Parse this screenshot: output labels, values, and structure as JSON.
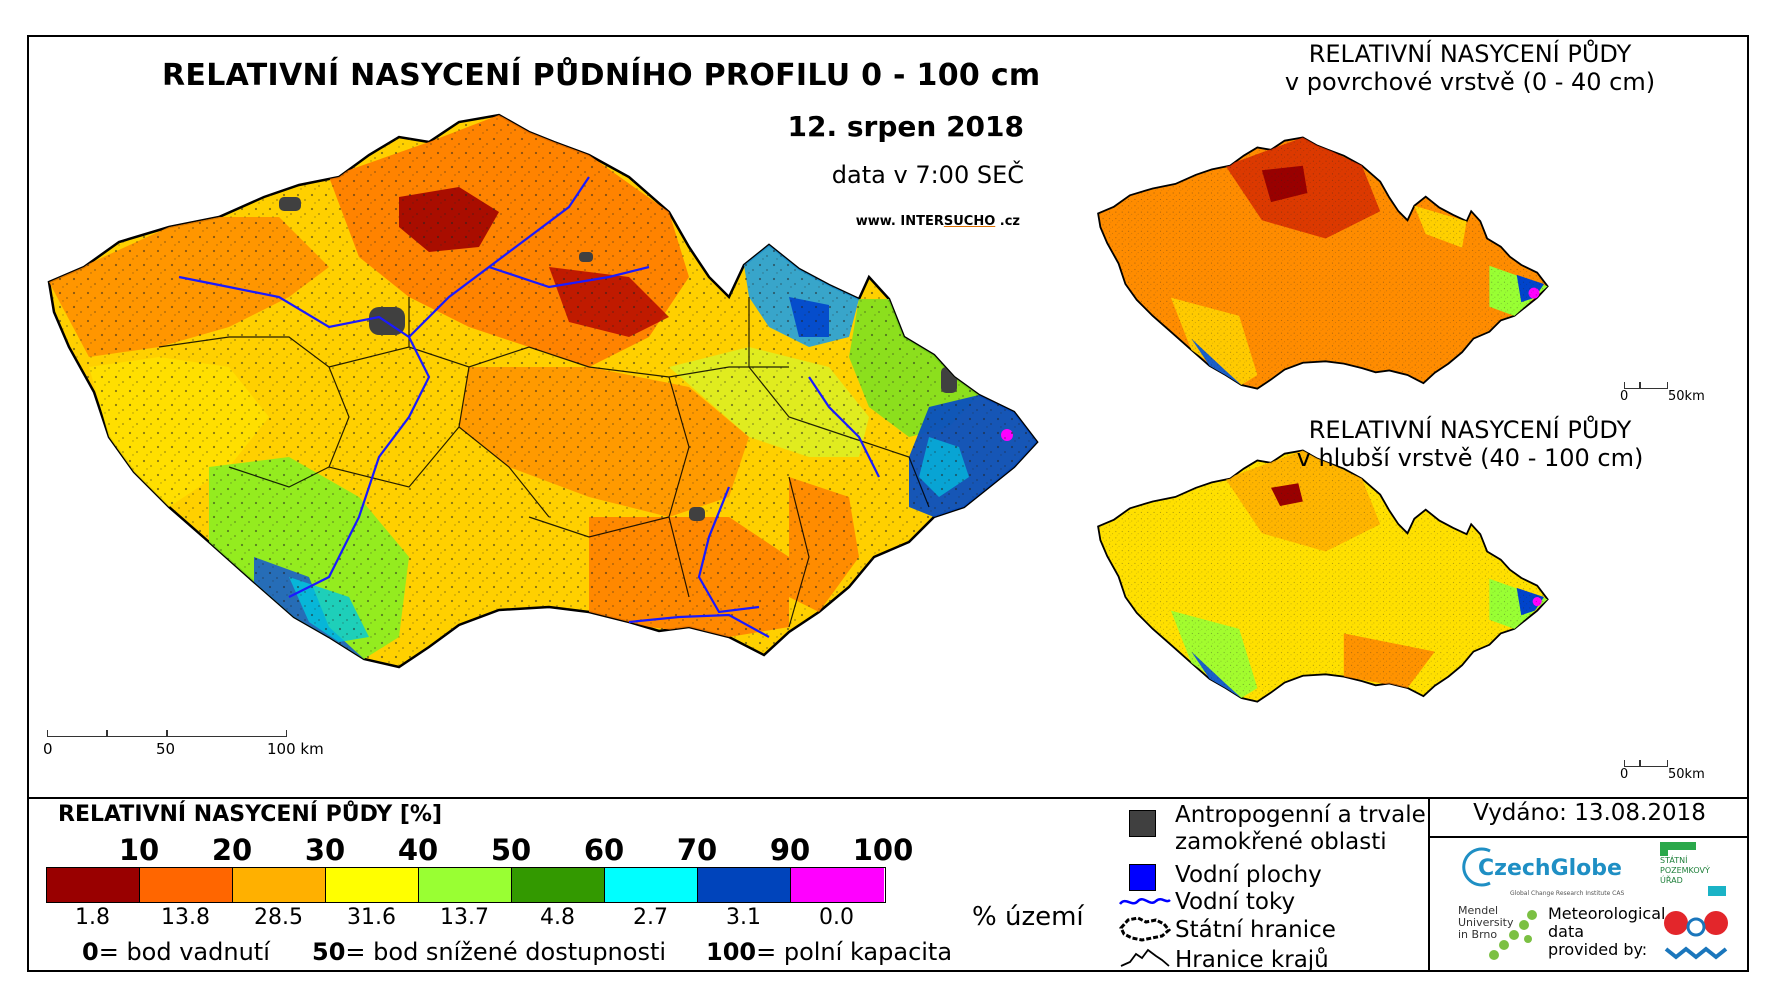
{
  "header": {
    "title": "RELATIVNÍ NASYCENÍ PŮDNÍHO PROFILU 0 - 100 cm",
    "date": "12. srpen 2018",
    "data_time": "data v 7:00 SEČ",
    "website_prefix": "www. INTER",
    "website_mid": "SUCHO",
    "website_suffix": " .cz"
  },
  "main_scale": {
    "labels": [
      "0",
      "50",
      "100 km"
    ]
  },
  "inset_surface": {
    "title_line1": "RELATIVNÍ NASYCENÍ PŮDY",
    "title_line2": "v povrchové vrstvě (0 - 40 cm)",
    "scale_labels": [
      "0",
      "50km"
    ]
  },
  "inset_deep": {
    "title_line1": "RELATIVNÍ NASYCENÍ PŮDY",
    "title_line2": "v hlubší vrstvě (40 - 100 cm)",
    "scale_labels": [
      "0",
      "50km"
    ]
  },
  "legend": {
    "title": "RELATIVNÍ NASYCENÍ PŮDY [%]",
    "ticks": [
      "10",
      "20",
      "30",
      "40",
      "50",
      "60",
      "70",
      "90",
      "100"
    ],
    "classes": [
      {
        "color": "#990000",
        "pct": "1.8"
      },
      {
        "color": "#ff6600",
        "pct": "13.8"
      },
      {
        "color": "#ffb000",
        "pct": "28.5"
      },
      {
        "color": "#ffff00",
        "pct": "31.6"
      },
      {
        "color": "#99ff33",
        "pct": "13.7"
      },
      {
        "color": "#339900",
        "pct": "4.8"
      },
      {
        "color": "#00ffff",
        "pct": "2.7"
      },
      {
        "color": "#0044bb",
        "pct": "3.1"
      },
      {
        "color": "#ff00ff",
        "pct": "0.0"
      }
    ],
    "pct_unit": "% území",
    "def0_num": "0",
    "def0_text": "= bod vadnutí",
    "def50_num": "50",
    "def50_text": "= bod snížené dostupnosti",
    "def100_num": "100",
    "def100_text": "= polní kapacita"
  },
  "symbols": {
    "anthropogenic_line1": "Antropogenní a trvale",
    "anthropogenic_line2": "zamokřené oblasti",
    "water_bodies": "Vodní plochy",
    "rivers": "Vodní toky",
    "state_border": "Státní hranice",
    "region_border": "Hranice krajů",
    "anthropogenic_color": "#404040",
    "water_color": "#0000ff"
  },
  "issued": "Vydáno: 13.08.2018",
  "logos": {
    "czechglobe": "CzechGlobe",
    "czechglobe_sub": "Global Change Research Institute CAS",
    "spu_line1": "STÁTNÍ",
    "spu_line2": "POZEMKOVÝ",
    "spu_line3": "ÚŘAD",
    "mendel_line1": "Mendel",
    "mendel_line2": "University",
    "mendel_line3": "in Brno",
    "meteo_line1": "Meteorological",
    "meteo_line2": "data",
    "meteo_line3": "provided by:"
  }
}
